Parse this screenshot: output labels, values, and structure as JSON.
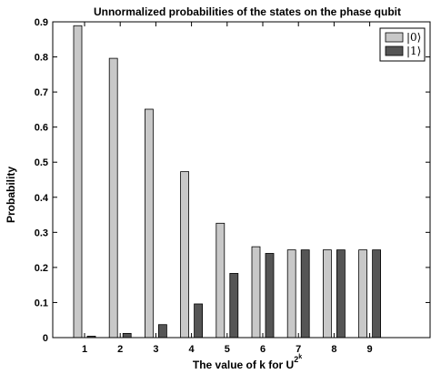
{
  "chart_data": {
    "type": "bar",
    "title": "Unnormalized probabilities of the states on the phase qubit",
    "xlabel": "The value of k for U",
    "xlabel_superscript": "2",
    "xlabel_superscript2": "k",
    "ylabel": "Probability",
    "categories": [
      "1",
      "2",
      "3",
      "4",
      "5",
      "6",
      "7",
      "8",
      "9"
    ],
    "ylim": [
      0,
      0.9
    ],
    "yticks": [
      "0",
      "0.1",
      "0.2",
      "0.3",
      "0.4",
      "0.5",
      "0.6",
      "0.7",
      "0.8",
      "0.9"
    ],
    "grid": false,
    "legend_position": "top-right",
    "series": [
      {
        "name": "|0⟩",
        "color": "#c8c8c8",
        "values": [
          0.889,
          0.796,
          0.651,
          0.473,
          0.326,
          0.259,
          0.25,
          0.25,
          0.25
        ]
      },
      {
        "name": "|1⟩",
        "color": "#555555",
        "values": [
          0.004,
          0.012,
          0.037,
          0.096,
          0.183,
          0.24,
          0.25,
          0.25,
          0.25
        ]
      }
    ]
  }
}
